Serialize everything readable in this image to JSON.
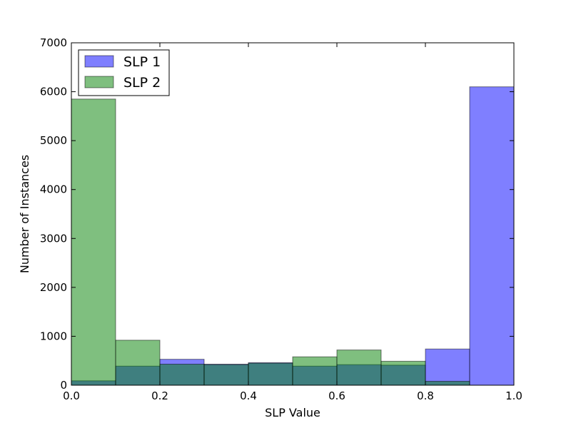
{
  "chart_data": {
    "type": "bar",
    "subtype": "overlapping-histogram",
    "title": "",
    "xlabel": "SLP Value",
    "ylabel": "Number of Instances",
    "xlim": [
      0.0,
      1.0
    ],
    "ylim": [
      0,
      7000
    ],
    "bin_edges": [
      0.0,
      0.1,
      0.2,
      0.3,
      0.4,
      0.5,
      0.6,
      0.7,
      0.8,
      0.9,
      1.0
    ],
    "x_ticks": [
      "0.0",
      "0.2",
      "0.4",
      "0.6",
      "0.8",
      "1.0"
    ],
    "y_ticks": [
      "0",
      "1000",
      "2000",
      "3000",
      "4000",
      "5000",
      "6000",
      "7000"
    ],
    "grid": false,
    "legend_position": "top-left",
    "alpha": 0.5,
    "series": [
      {
        "name": "SLP 1",
        "color": "#0000ff",
        "values": [
          90,
          390,
          530,
          430,
          460,
          390,
          420,
          410,
          740,
          6100
        ]
      },
      {
        "name": "SLP 2",
        "color": "#008000",
        "values": [
          5850,
          920,
          430,
          420,
          450,
          580,
          720,
          490,
          80,
          0
        ]
      }
    ]
  }
}
